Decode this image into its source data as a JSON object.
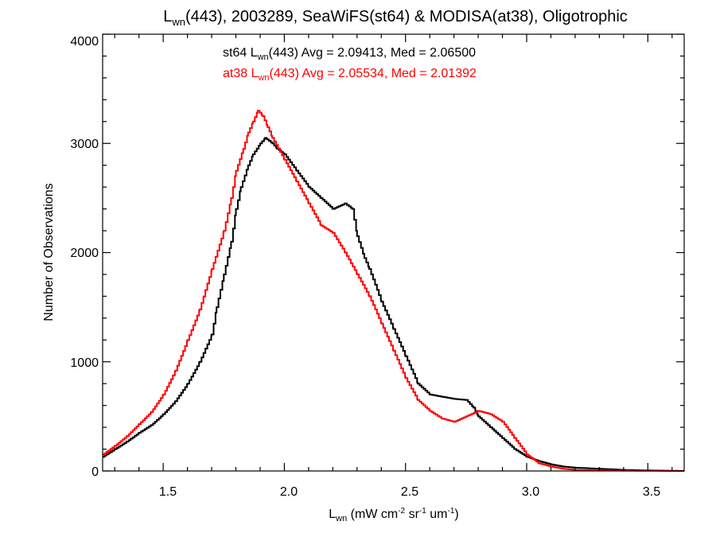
{
  "chart_data": {
    "type": "line",
    "step": true,
    "title": {
      "main": "L",
      "sub": "wn",
      "rest": "(443), 2003289, SeaWiFS(st64) & MODISA(at38), Oligotrophic"
    },
    "xlabel": {
      "main": "L",
      "sub": "wn",
      "p1": " (mW cm",
      "sup1": "-2",
      "p2": " sr",
      "sup2": "-1",
      "p3": " um",
      "sup3": "-1",
      "p4": ")"
    },
    "ylabel": "Number of Observations",
    "xlim": [
      1.25,
      3.65
    ],
    "ylim": [
      0,
      4000
    ],
    "xticks": [
      "1.5",
      "2.0",
      "2.5",
      "3.0",
      "3.5"
    ],
    "xtick_values": [
      1.5,
      2.0,
      2.5,
      3.0,
      3.5
    ],
    "yticks": [
      "0",
      "1000",
      "2000",
      "3000",
      "4000"
    ],
    "ytick_values": [
      0,
      1000,
      2000,
      3000,
      4000
    ],
    "grid": false,
    "annotations": [
      {
        "pre": "st64 L",
        "sub": "wn",
        "post": "(443) Avg = 2.09413, Med = 2.06500",
        "color": "#000000"
      },
      {
        "pre": "at38 L",
        "sub": "wn",
        "post": "(443) Avg = 2.05534, Med = 2.01392",
        "color": "#ff0000"
      }
    ],
    "series": [
      {
        "color": "#000000",
        "x": [
          1.25,
          1.3,
          1.35,
          1.4,
          1.45,
          1.5,
          1.55,
          1.6,
          1.65,
          1.7,
          1.72,
          1.75,
          1.78,
          1.8,
          1.82,
          1.85,
          1.87,
          1.9,
          1.92,
          1.95,
          1.97,
          2.0,
          2.05,
          2.1,
          2.15,
          2.2,
          2.25,
          2.28,
          2.3,
          2.33,
          2.35,
          2.4,
          2.45,
          2.5,
          2.55,
          2.6,
          2.65,
          2.7,
          2.75,
          2.78,
          2.8,
          2.85,
          2.9,
          2.95,
          3.0,
          3.05,
          3.1,
          3.15,
          3.2,
          3.3,
          3.4,
          3.5,
          3.6,
          3.65
        ],
        "y": [
          130,
          200,
          270,
          350,
          420,
          520,
          640,
          800,
          1000,
          1250,
          1500,
          1800,
          2100,
          2400,
          2600,
          2800,
          2900,
          3000,
          3050,
          3000,
          2950,
          2900,
          2750,
          2600,
          2500,
          2400,
          2450,
          2400,
          2150,
          1950,
          1850,
          1550,
          1300,
          1050,
          800,
          700,
          680,
          660,
          650,
          580,
          500,
          400,
          300,
          200,
          130,
          90,
          60,
          40,
          30,
          20,
          10,
          5,
          2,
          0
        ]
      },
      {
        "color": "#ff0000",
        "x": [
          1.25,
          1.3,
          1.35,
          1.4,
          1.45,
          1.5,
          1.55,
          1.6,
          1.65,
          1.7,
          1.75,
          1.78,
          1.8,
          1.83,
          1.85,
          1.87,
          1.89,
          1.91,
          1.93,
          1.95,
          2.0,
          2.05,
          2.1,
          2.15,
          2.2,
          2.25,
          2.3,
          2.35,
          2.4,
          2.45,
          2.5,
          2.55,
          2.6,
          2.65,
          2.7,
          2.75,
          2.8,
          2.85,
          2.9,
          2.95,
          3.0,
          3.05,
          3.1,
          3.15,
          3.2,
          3.3,
          3.4,
          3.5,
          3.6,
          3.65
        ],
        "y": [
          150,
          230,
          320,
          430,
          540,
          700,
          920,
          1200,
          1480,
          1850,
          2200,
          2500,
          2750,
          2950,
          3100,
          3200,
          3300,
          3250,
          3150,
          3050,
          2850,
          2650,
          2450,
          2250,
          2180,
          2000,
          1800,
          1600,
          1350,
          1100,
          850,
          650,
          550,
          480,
          450,
          500,
          550,
          520,
          450,
          300,
          150,
          70,
          40,
          20,
          10,
          5,
          3,
          2,
          0,
          0
        ]
      }
    ]
  }
}
